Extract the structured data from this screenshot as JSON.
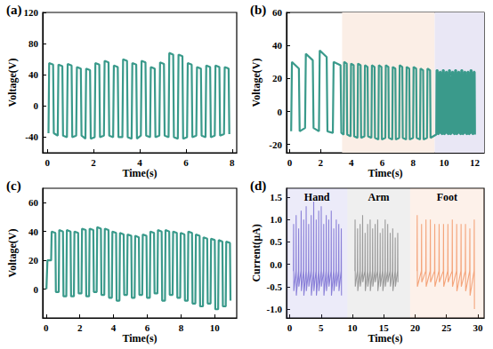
{
  "chart_data": [
    {
      "type": "line",
      "title": "(a)",
      "xlabel": "Time(s)",
      "ylabel": "Voltage(V)",
      "color": "#3a9a8b",
      "xlim": [
        -0.2,
        8.2
      ],
      "xticks": [
        0,
        2,
        4,
        6,
        8
      ],
      "ylim": [
        -60,
        120
      ],
      "yticks": [
        -40,
        0,
        40,
        80,
        120
      ],
      "x": [
        0.05,
        0.08,
        0.25,
        0.28,
        0.45,
        0.48,
        0.65,
        0.68,
        0.85,
        0.88,
        1.05,
        1.08,
        1.25,
        1.28,
        1.45,
        1.48,
        1.65,
        1.68,
        1.85,
        1.88,
        2.05,
        2.08,
        2.25,
        2.28,
        2.45,
        2.48,
        2.65,
        2.68,
        2.85,
        2.88,
        3.05,
        3.08,
        3.25,
        3.28,
        3.45,
        3.48,
        3.65,
        3.68,
        3.85,
        3.88,
        4.05,
        4.08,
        4.25,
        4.28,
        4.45,
        4.48,
        4.65,
        4.68,
        4.85,
        4.88,
        5.05,
        5.08,
        5.25,
        5.28,
        5.45,
        5.48,
        5.65,
        5.68,
        5.85,
        5.88,
        6.05,
        6.08,
        6.25,
        6.28,
        6.45,
        6.48,
        6.65,
        6.68,
        6.85,
        6.88,
        7.05,
        7.08,
        7.25,
        7.28,
        7.45,
        7.48,
        7.65,
        7.68,
        7.85,
        7.88
      ],
      "values": [
        -35,
        55,
        53,
        -35,
        -38,
        53,
        51,
        -38,
        -40,
        54,
        52,
        -40,
        -38,
        50,
        48,
        -38,
        -42,
        48,
        46,
        -42,
        -40,
        55,
        53,
        -40,
        -38,
        58,
        56,
        -38,
        -40,
        52,
        50,
        -40,
        -40,
        60,
        58,
        -40,
        -42,
        55,
        53,
        -42,
        -38,
        58,
        56,
        -38,
        -40,
        50,
        48,
        -40,
        -38,
        56,
        54,
        -38,
        -40,
        68,
        66,
        -40,
        -42,
        66,
        64,
        -42,
        -40,
        55,
        53,
        -40,
        -38,
        50,
        48,
        -38,
        -40,
        52,
        50,
        -40,
        -38,
        52,
        50,
        -38,
        -36,
        50,
        48,
        -36
      ]
    },
    {
      "type": "line",
      "title": "(b)",
      "xlabel": "Time(s)",
      "ylabel": "Voltage(V)",
      "color": "#3a9a8b",
      "xlim": [
        -0.2,
        12.6
      ],
      "xticks": [
        0,
        2,
        4,
        6,
        8,
        10,
        12
      ],
      "ylim": [
        -25,
        60
      ],
      "yticks": [
        -20,
        0,
        20,
        40,
        60
      ],
      "regions": [
        {
          "range": [
            3.4,
            9.4
          ],
          "color": "#fbeee6"
        },
        {
          "range": [
            9.4,
            12.6
          ],
          "color": "#e9e7f5"
        }
      ],
      "x": [
        0.1,
        0.15,
        0.6,
        0.65,
        1.0,
        1.05,
        1.5,
        1.55,
        1.9,
        1.95,
        2.4,
        2.45,
        2.8,
        2.85,
        3.3,
        3.35,
        3.5,
        3.53,
        3.7,
        3.73,
        3.95,
        3.98,
        4.15,
        4.18,
        4.4,
        4.43,
        4.6,
        4.63,
        4.85,
        4.88,
        5.05,
        5.08,
        5.3,
        5.33,
        5.5,
        5.53,
        5.75,
        5.78,
        5.95,
        5.98,
        6.2,
        6.23,
        6.4,
        6.43,
        6.65,
        6.68,
        6.85,
        6.88,
        7.1,
        7.13,
        7.3,
        7.33,
        7.55,
        7.58,
        7.75,
        7.78,
        8.0,
        8.03,
        8.2,
        8.23,
        8.45,
        8.48,
        8.65,
        8.68,
        8.9,
        8.93,
        9.1,
        9.13,
        9.5,
        9.52,
        9.59,
        9.61,
        9.7,
        9.72,
        9.79,
        9.81,
        9.9,
        9.92,
        9.99,
        10.01,
        10.1,
        10.12,
        10.19,
        10.21,
        10.3,
        10.32,
        10.39,
        10.41,
        10.5,
        10.52,
        10.59,
        10.61,
        10.7,
        10.72,
        10.79,
        10.81,
        10.9,
        10.92,
        10.99,
        11.01,
        11.1,
        11.12,
        11.19,
        11.21,
        11.3,
        11.32,
        11.39,
        11.41,
        11.5,
        11.52,
        11.59,
        11.61,
        11.7,
        11.72,
        11.79,
        11.81,
        11.9,
        11.92,
        11.99,
        12.01
      ],
      "values": [
        -12,
        30,
        26,
        -12,
        -10,
        35,
        31,
        -10,
        -12,
        37,
        33,
        -12,
        -13,
        30,
        28,
        -13,
        -14,
        30,
        29,
        -14,
        -15,
        29,
        28,
        -15,
        -16,
        29,
        28,
        -16,
        -15,
        28,
        27,
        -15,
        -16,
        28,
        27,
        -16,
        -17,
        28,
        27,
        -17,
        -16,
        28,
        27,
        -16,
        -17,
        27,
        26,
        -17,
        -16,
        28,
        27,
        -16,
        -17,
        27,
        26,
        -17,
        -16,
        27,
        26,
        -16,
        -17,
        26,
        25,
        -17,
        -16,
        26,
        25,
        -16,
        -14,
        25,
        25,
        -14,
        -13,
        24,
        24,
        -13,
        -14,
        25,
        25,
        -14,
        -13,
        24,
        24,
        -13,
        -14,
        25,
        25,
        -14,
        -13,
        24,
        24,
        -13,
        -14,
        25,
        25,
        -14,
        -13,
        24,
        24,
        -13,
        -14,
        25,
        25,
        -14,
        -13,
        24,
        24,
        -13,
        -14,
        24,
        24,
        -14,
        -13,
        25,
        25,
        -13,
        -14,
        24,
        24,
        -14
      ]
    },
    {
      "type": "line",
      "title": "(c)",
      "xlabel": "Time(s)",
      "ylabel": "Voltage(V)",
      "color": "#3a9a8b",
      "xlim": [
        -0.2,
        11.3
      ],
      "xticks": [
        0,
        2,
        4,
        6,
        8,
        10
      ],
      "ylim": [
        -20,
        70
      ],
      "yticks": [
        0,
        20,
        40,
        60
      ],
      "x": [
        0.02,
        0.08,
        0.26,
        0.3,
        0.33,
        0.55,
        0.58,
        0.75,
        0.78,
        1.0,
        1.03,
        1.2,
        1.23,
        1.45,
        1.48,
        1.65,
        1.68,
        1.9,
        1.93,
        2.1,
        2.13,
        2.35,
        2.38,
        2.55,
        2.58,
        2.8,
        2.83,
        3.0,
        3.03,
        3.25,
        3.28,
        3.45,
        3.48,
        3.7,
        3.73,
        3.9,
        3.93,
        4.15,
        4.18,
        4.35,
        4.38,
        4.6,
        4.63,
        4.8,
        4.83,
        5.05,
        5.08,
        5.25,
        5.28,
        5.5,
        5.53,
        5.7,
        5.73,
        5.95,
        5.98,
        6.15,
        6.18,
        6.4,
        6.43,
        6.6,
        6.63,
        6.85,
        6.88,
        7.05,
        7.08,
        7.3,
        7.33,
        7.5,
        7.53,
        7.75,
        7.78,
        7.95,
        7.98,
        8.2,
        8.23,
        8.4,
        8.43,
        8.65,
        8.68,
        8.85,
        8.88,
        9.1,
        9.13,
        9.3,
        9.33,
        9.55,
        9.58,
        9.75,
        9.78,
        10.0,
        10.03,
        10.2,
        10.23,
        10.45,
        10.48,
        10.65,
        10.68,
        10.9,
        10.93
      ],
      "values": [
        0,
        20,
        20,
        20,
        40,
        39,
        -2,
        -2,
        41,
        40,
        -5,
        -5,
        41,
        40,
        -5,
        -5,
        40,
        39,
        -3,
        -3,
        42,
        41,
        -5,
        -5,
        42,
        41,
        -2,
        -2,
        43,
        42,
        -4,
        -4,
        42,
        41,
        -6,
        -6,
        40,
        39,
        -8,
        -8,
        39,
        38,
        -4,
        -4,
        38,
        37,
        -6,
        -6,
        37,
        36,
        -4,
        -4,
        38,
        37,
        -6,
        -6,
        40,
        39,
        -3,
        -3,
        41,
        40,
        -8,
        -8,
        41,
        40,
        -4,
        -4,
        40,
        39,
        -6,
        -6,
        39,
        38,
        -8,
        -8,
        40,
        39,
        -10,
        -10,
        38,
        37,
        -12,
        -12,
        36,
        35,
        -10,
        -10,
        35,
        34,
        -14,
        -14,
        34,
        33,
        -12,
        -12,
        33,
        32,
        -8
      ]
    },
    {
      "type": "line",
      "title": "(d)",
      "xlabel": "Time(s)",
      "ylabel": "Current(μA)",
      "xlim": [
        -0.5,
        31
      ],
      "xticks": [
        0,
        5,
        10,
        15,
        20,
        25,
        30
      ],
      "ylim": [
        -1.2,
        1.7
      ],
      "yticks": [
        {
          "value": -1,
          "label": "-1.0"
        },
        {
          "value": -0.5,
          "label": "-0.5"
        },
        {
          "value": 0,
          "label": "0.0"
        },
        {
          "value": 0.5,
          "label": "0.5"
        },
        {
          "value": 1,
          "label": "1.0"
        },
        {
          "value": 1.5,
          "label": "1.5"
        }
      ],
      "series": [
        {
          "name": "Hand",
          "color": "#8a80d8",
          "region": [
            -0.5,
            9.2
          ],
          "x": [
            0.6,
            0.63,
            0.66,
            1.0,
            1.03,
            1.06,
            1.4,
            1.43,
            1.46,
            1.8,
            1.83,
            1.86,
            2.2,
            2.23,
            2.26,
            2.6,
            2.63,
            2.66,
            3.0,
            3.03,
            3.06,
            3.4,
            3.43,
            3.46,
            3.8,
            3.83,
            3.86,
            4.2,
            4.23,
            4.26,
            4.6,
            4.63,
            4.66,
            5.0,
            5.03,
            5.06,
            5.4,
            5.43,
            5.46,
            5.8,
            5.83,
            5.86,
            6.2,
            6.23,
            6.26,
            6.6,
            6.63,
            6.66,
            7.0,
            7.03,
            7.06,
            7.4,
            7.43,
            7.46,
            7.8,
            7.83,
            7.86,
            8.2,
            8.23,
            8.26
          ],
          "values": [
            -0.15,
            0.9,
            -0.6,
            -0.15,
            1.1,
            -0.7,
            -0.15,
            0.8,
            -0.5,
            -0.15,
            1.2,
            -0.6,
            -0.15,
            1.0,
            -0.7,
            -0.15,
            1.3,
            -0.6,
            -0.15,
            0.9,
            -0.5,
            -0.15,
            1.1,
            -0.7,
            -0.15,
            1.4,
            -0.6,
            -0.15,
            1.0,
            -0.7,
            -0.15,
            1.2,
            -0.6,
            -0.15,
            1.3,
            -0.5,
            -0.15,
            0.9,
            -0.7,
            -0.15,
            1.1,
            -0.6,
            -0.15,
            1.0,
            -0.5,
            -0.15,
            1.2,
            -0.7,
            -0.15,
            0.8,
            -0.6,
            -0.15,
            1.0,
            -0.5,
            -0.15,
            0.9,
            -0.6,
            -0.15,
            0.8,
            -0.7
          ]
        },
        {
          "name": "Arm",
          "color": "#9a9a9a",
          "region": [
            9.2,
            19.2
          ],
          "x": [
            10.4,
            10.43,
            10.46,
            10.8,
            10.83,
            10.86,
            11.2,
            11.23,
            11.26,
            11.6,
            11.63,
            11.66,
            12.0,
            12.03,
            12.06,
            12.4,
            12.43,
            12.46,
            12.8,
            12.83,
            12.86,
            13.2,
            13.23,
            13.26,
            13.6,
            13.63,
            13.66,
            14.0,
            14.03,
            14.06,
            14.4,
            14.43,
            14.46,
            14.8,
            14.83,
            14.86,
            15.2,
            15.23,
            15.26,
            15.6,
            15.63,
            15.66,
            16.0,
            16.03,
            16.06,
            16.4,
            16.43,
            16.46,
            16.8,
            16.83,
            16.86,
            17.2,
            17.23,
            17.26
          ],
          "values": [
            -0.15,
            1.0,
            -0.5,
            -0.15,
            0.8,
            -0.6,
            -0.15,
            0.9,
            -0.5,
            -0.15,
            1.1,
            -0.4,
            -0.15,
            0.7,
            -0.6,
            -0.15,
            0.9,
            -0.5,
            -0.15,
            1.0,
            -0.6,
            -0.15,
            0.8,
            -0.5,
            -0.15,
            0.9,
            -0.4,
            -0.15,
            1.0,
            -0.6,
            -0.15,
            0.7,
            -0.5,
            -0.15,
            0.8,
            -0.6,
            -0.15,
            1.0,
            -0.5,
            -0.15,
            0.9,
            -0.4,
            -0.15,
            0.7,
            -0.5,
            -0.15,
            0.8,
            -0.6,
            -0.15,
            0.6,
            -0.5,
            -0.15,
            0.7,
            -0.4
          ]
        },
        {
          "name": "Foot",
          "color": "#f4a57c",
          "region": [
            19.2,
            31
          ],
          "x": [
            20.3,
            20.33,
            20.36,
            21.0,
            21.03,
            21.06,
            21.7,
            21.73,
            21.76,
            22.4,
            22.43,
            22.46,
            23.1,
            23.13,
            23.16,
            23.8,
            23.83,
            23.86,
            24.5,
            24.53,
            24.56,
            25.2,
            25.23,
            25.26,
            25.9,
            25.93,
            25.96,
            26.6,
            26.63,
            26.66,
            27.3,
            27.33,
            27.36,
            28.0,
            28.03,
            28.06,
            28.7,
            28.73,
            28.76,
            29.4,
            29.43,
            29.46
          ],
          "values": [
            -0.15,
            1.1,
            -0.5,
            -0.15,
            0.9,
            -0.4,
            -0.15,
            1.0,
            -0.5,
            -0.15,
            1.0,
            -0.4,
            -0.15,
            0.9,
            -0.5,
            -0.15,
            0.9,
            -0.4,
            -0.15,
            0.9,
            -0.5,
            -0.15,
            0.9,
            -0.4,
            -0.15,
            1.0,
            -0.5,
            -0.15,
            0.9,
            -0.6,
            -0.15,
            0.9,
            -0.5,
            -0.15,
            0.9,
            -0.6,
            -0.15,
            0.8,
            -0.7,
            -0.15,
            1.0,
            -1.0
          ]
        }
      ]
    }
  ]
}
